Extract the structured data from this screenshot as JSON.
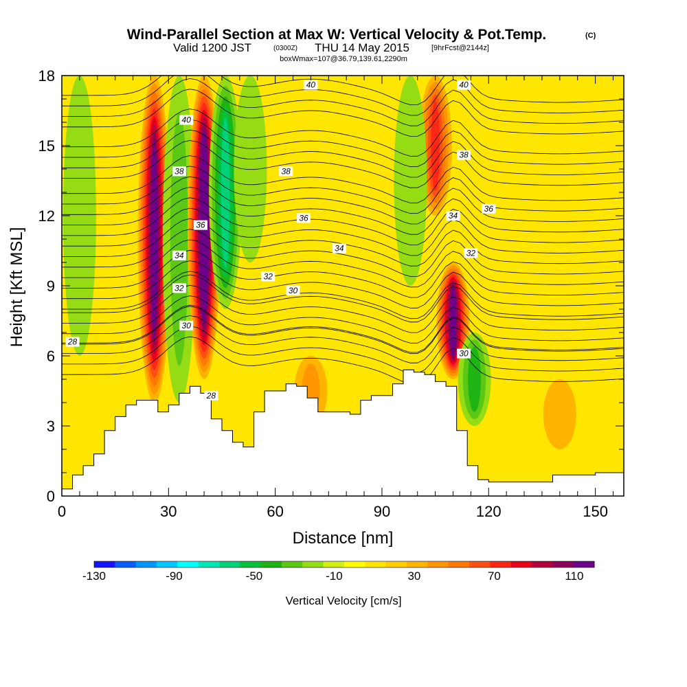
{
  "title": {
    "main": "Wind-Parallel Section at Max W: Vertical Velocity & Pot.Temp.",
    "copyright": "(C)",
    "valid_prefix": "Valid 1200 JST",
    "valid_utc": "(0300Z)",
    "valid_date": "THU 14 May 2015",
    "forecast": "[9hrFcst@2144z]",
    "box": "boxWmax=107@36.79,139.61,2290m"
  },
  "chart_data": {
    "type": "heatmap",
    "xlabel": "Distance [nm]",
    "ylabel": "Height [Kft MSL]",
    "xlim": [
      0,
      158
    ],
    "ylim": [
      0,
      18
    ],
    "x_ticks": [
      "0",
      "30",
      "60",
      "90",
      "120",
      "150"
    ],
    "x_tick_values": [
      0,
      30,
      60,
      90,
      120,
      150
    ],
    "y_ticks": [
      "0",
      "3",
      "6",
      "9",
      "12",
      "15",
      "18"
    ],
    "y_tick_values": [
      0,
      3,
      6,
      9,
      12,
      15,
      18
    ],
    "grid": false,
    "colorbar": {
      "label": "Vertical Velocity [cm/s]",
      "tick_labels": [
        "-130",
        "-90",
        "-50",
        "-10",
        "30",
        "70",
        "110"
      ],
      "tick_values": [
        -130,
        -90,
        -50,
        -10,
        30,
        70,
        110
      ],
      "min": -130,
      "max": 110,
      "step": 10,
      "colors": [
        "#1414ff",
        "#0a5fff",
        "#0096ff",
        "#00c8ff",
        "#00ffff",
        "#00e6b4",
        "#00d278",
        "#00c03c",
        "#1eb414",
        "#5ac814",
        "#96dc14",
        "#d2f014",
        "#ffff00",
        "#ffe600",
        "#ffcc00",
        "#ffb400",
        "#ff9600",
        "#ff7800",
        "#ff5014",
        "#ff2814",
        "#e6001e",
        "#b4003c",
        "#8c005a",
        "#6e008c"
      ]
    },
    "vertical_velocity_features": [
      {
        "x": 26,
        "y_range": [
          4,
          18
        ],
        "value": 100
      },
      {
        "x": 33,
        "y_range": [
          4,
          18
        ],
        "value": -40
      },
      {
        "x": 40,
        "y_range": [
          5,
          18
        ],
        "value": 110
      },
      {
        "x": 46,
        "y_range": [
          8,
          18
        ],
        "value": -70
      },
      {
        "x": 53,
        "y_range": [
          10,
          18
        ],
        "value": -30
      },
      {
        "x": 105,
        "y_range": [
          12,
          18
        ],
        "value": 60
      },
      {
        "x": 110,
        "y_range": [
          5,
          10
        ],
        "value": 100
      },
      {
        "x": 116,
        "y_range": [
          3,
          7
        ],
        "value": -50
      },
      {
        "x": 98,
        "y_range": [
          9,
          18
        ],
        "value": -30
      },
      {
        "x": 5,
        "y_range": [
          6,
          18
        ],
        "value": -20
      },
      {
        "x": 70,
        "y_range": [
          3,
          6
        ],
        "value": 30
      },
      {
        "x": 140,
        "y_range": [
          2,
          5
        ],
        "value": 20
      }
    ],
    "terrain_kft": {
      "x": [
        0,
        3,
        6,
        9,
        12,
        15,
        18,
        21,
        24,
        27,
        30,
        33,
        36,
        39,
        42,
        45,
        48,
        51,
        54,
        57,
        60,
        63,
        66,
        69,
        72,
        75,
        78,
        81,
        84,
        87,
        90,
        93,
        96,
        99,
        102,
        105,
        108,
        111,
        114,
        117,
        120,
        123,
        126,
        129,
        132,
        135,
        138,
        141,
        144,
        147,
        150,
        153,
        156,
        158
      ],
      "height": [
        0.3,
        0.9,
        1.3,
        1.8,
        2.8,
        3.4,
        3.9,
        4.1,
        4.1,
        3.6,
        3.9,
        4.4,
        4.7,
        4.4,
        3.3,
        2.8,
        2.3,
        2.1,
        3.6,
        4.5,
        4.5,
        4.8,
        4.7,
        4.2,
        3.6,
        3.6,
        3.6,
        3.5,
        4.1,
        4.3,
        4.3,
        4.8,
        5.4,
        5.3,
        5.2,
        4.9,
        4.7,
        2.8,
        1.3,
        0.7,
        0.6,
        0.6,
        0.6,
        0.6,
        0.6,
        0.6,
        0.9,
        0.9,
        0.9,
        0.9,
        1.0,
        1.0,
        1.0,
        1.0
      ]
    },
    "potential_temperature_contours": {
      "levels": [
        28,
        30,
        32,
        34,
        36,
        38,
        40
      ],
      "labels": [
        {
          "text": "28",
          "x": 3,
          "y": 6.6
        },
        {
          "text": "28",
          "x": 42,
          "y": 4.3
        },
        {
          "text": "30",
          "x": 35,
          "y": 7.3
        },
        {
          "text": "30",
          "x": 65,
          "y": 8.8
        },
        {
          "text": "30",
          "x": 113,
          "y": 6.1
        },
        {
          "text": "32",
          "x": 33,
          "y": 8.9
        },
        {
          "text": "32",
          "x": 58,
          "y": 9.4
        },
        {
          "text": "32",
          "x": 115,
          "y": 10.4
        },
        {
          "text": "34",
          "x": 33,
          "y": 10.3
        },
        {
          "text": "34",
          "x": 78,
          "y": 10.6
        },
        {
          "text": "34",
          "x": 110,
          "y": 12.0
        },
        {
          "text": "36",
          "x": 39,
          "y": 11.6
        },
        {
          "text": "36",
          "x": 68,
          "y": 11.9
        },
        {
          "text": "36",
          "x": 120,
          "y": 12.3
        },
        {
          "text": "38",
          "x": 33,
          "y": 13.9
        },
        {
          "text": "38",
          "x": 63,
          "y": 13.9
        },
        {
          "text": "38",
          "x": 113,
          "y": 14.6
        },
        {
          "text": "40",
          "x": 35,
          "y": 16.1
        },
        {
          "text": "40",
          "x": 70,
          "y": 17.6
        },
        {
          "text": "40",
          "x": 113,
          "y": 17.6
        }
      ]
    }
  }
}
